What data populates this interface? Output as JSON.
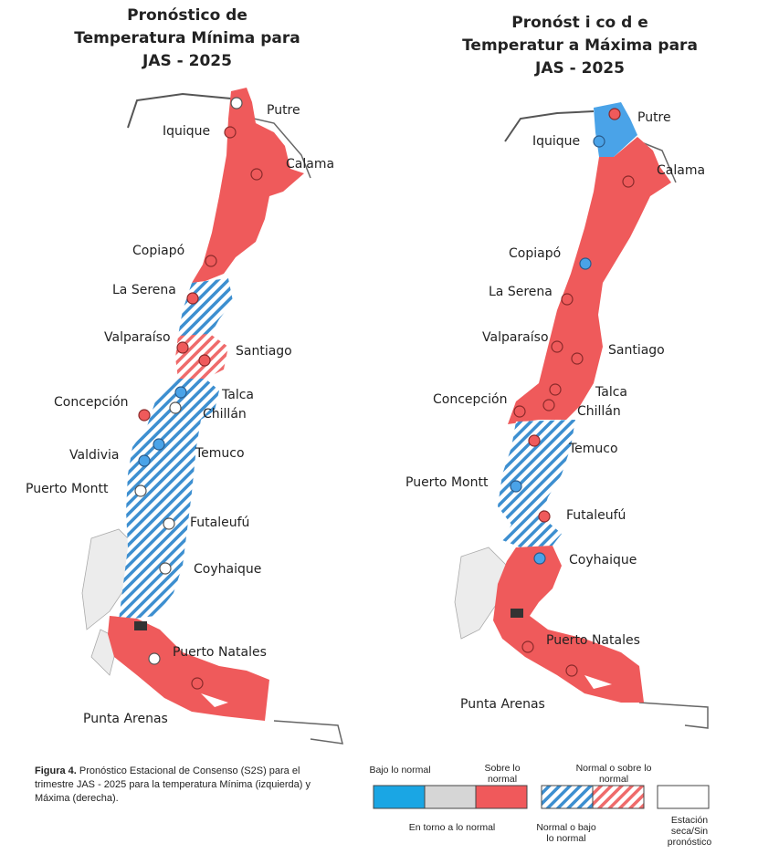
{
  "titles": {
    "left": [
      "Pronóstico de",
      "Temperatura Mínima para",
      "JAS - 2025"
    ],
    "right": [
      "Pronóst i co d e",
      "Temperatur a Máxima para",
      "JAS - 2025"
    ]
  },
  "categories": {
    "below": {
      "label": "Bajo lo normal",
      "color": "#1aa6e4"
    },
    "normal": {
      "label": "En torno a lo normal",
      "color": "#d6d6d6"
    },
    "above": {
      "label": "Sobre lo normal",
      "color": "#f0595b"
    },
    "normal_or_below": {
      "label": "Normal o bajo lo normal",
      "color": "#1aa6e4"
    },
    "normal_or_above": {
      "label": "Normal o sobre lo normal",
      "color": "#f0595b"
    },
    "dry": {
      "label": "Estación seca/Sin pronóstico",
      "color": "#ffffff"
    }
  },
  "map_min": {
    "stations": [
      {
        "name": "Putre",
        "forecast": "dry"
      },
      {
        "name": "Iquique",
        "forecast": "above"
      },
      {
        "name": "Calama",
        "forecast": "above"
      },
      {
        "name": "Copiapó",
        "forecast": "above"
      },
      {
        "name": "La Serena",
        "forecast": "above"
      },
      {
        "name": "Valparaíso",
        "forecast": "above"
      },
      {
        "name": "Santiago",
        "forecast": "above"
      },
      {
        "name": "Talca",
        "forecast": "below"
      },
      {
        "name": "Chillán",
        "forecast": "dry"
      },
      {
        "name": "Concepción",
        "forecast": "above"
      },
      {
        "name": "Temuco",
        "forecast": "below"
      },
      {
        "name": "Valdivia",
        "forecast": "below"
      },
      {
        "name": "Puerto Montt",
        "forecast": "dry"
      },
      {
        "name": "Futaleufú",
        "forecast": "dry"
      },
      {
        "name": "Coyhaique",
        "forecast": "dry"
      },
      {
        "name": "Puerto Natales",
        "forecast": "dry"
      },
      {
        "name": "Punta Arenas",
        "forecast": "above"
      }
    ]
  },
  "map_max": {
    "stations": [
      {
        "name": "Putre",
        "forecast": "above"
      },
      {
        "name": "Iquique",
        "forecast": "below"
      },
      {
        "name": "Calama",
        "forecast": "above"
      },
      {
        "name": "Copiapó",
        "forecast": "below"
      },
      {
        "name": "La Serena",
        "forecast": "above"
      },
      {
        "name": "Valparaíso",
        "forecast": "above"
      },
      {
        "name": "Santiago",
        "forecast": "above"
      },
      {
        "name": "Talca",
        "forecast": "above"
      },
      {
        "name": "Chillán",
        "forecast": "above"
      },
      {
        "name": "Concepción",
        "forecast": "above"
      },
      {
        "name": "Temuco",
        "forecast": "above"
      },
      {
        "name": "Puerto Montt",
        "forecast": "below"
      },
      {
        "name": "Futaleufú",
        "forecast": "above"
      },
      {
        "name": "Coyhaique",
        "forecast": "below"
      },
      {
        "name": "Puerto Natales",
        "forecast": "above"
      },
      {
        "name": "Punta Arenas",
        "forecast": "above"
      }
    ]
  },
  "caption": {
    "label": "Figura 4.",
    "text": " Pronóstico Estacional de Consenso (S2S) para el trimestre JAS - 2025 para la temperatura Mínima (izquierda) y Máxima (derecha)."
  },
  "legend": {
    "below": "Bajo lo normal",
    "normal": "En torno a lo normal",
    "above_1": "Sobre lo",
    "above_2": "normal",
    "nor_below_1": "Normal o bajo",
    "nor_below_2": "lo normal",
    "nor_above_1": "Normal o sobre lo",
    "nor_above_2": "normal",
    "dry_1": "Estación",
    "dry_2": "seca/Sin",
    "dry_3": "pronóstico"
  }
}
